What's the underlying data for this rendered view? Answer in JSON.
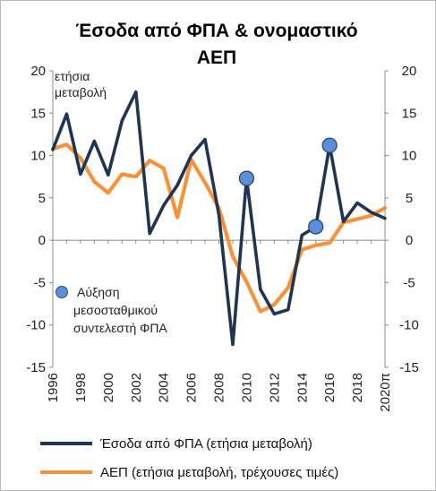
{
  "chart_data": {
    "type": "line",
    "title_line1": "Έσοδα από ΦΠΑ & ονομαστικό",
    "title_line2": "ΑΕΠ",
    "ylabel_line1": "ετήσια",
    "ylabel_line2": "μεταβολή",
    "ylim": [
      -15,
      20
    ],
    "yticks": [
      "20",
      "15",
      "10",
      "5",
      "0",
      "-5",
      "-10",
      "-15"
    ],
    "ytick_values": [
      20,
      15,
      10,
      5,
      0,
      -5,
      -10,
      -15
    ],
    "xlim": [
      1996,
      2020
    ],
    "xtick_labels": [
      "1996",
      "1998",
      "2000",
      "2002",
      "2004",
      "2006",
      "2008",
      "2010",
      "2012",
      "2014",
      "2016",
      "2018",
      "2020π"
    ],
    "xtick_values": [
      1996,
      1998,
      2000,
      2002,
      2004,
      2006,
      2008,
      2010,
      2012,
      2014,
      2016,
      2018,
      2020
    ],
    "series": [
      {
        "name": "Έσοδα από ΦΠΑ (ετήσια μεταβολή)",
        "color": "#1f3552",
        "x": [
          1996,
          1997,
          1998,
          1999,
          2000,
          2001,
          2002,
          2003,
          2004,
          2005,
          2006,
          2007,
          2008,
          2009,
          2010,
          2011,
          2012,
          2013,
          2014,
          2015,
          2016,
          2017,
          2018,
          2019,
          2020
        ],
        "values": [
          10.7,
          14.9,
          7.8,
          11.7,
          7.7,
          14.1,
          17.5,
          0.8,
          4.1,
          6.5,
          10.0,
          11.9,
          3.0,
          -12.3,
          7.3,
          -5.8,
          -8.7,
          -8.2,
          0.6,
          1.6,
          11.2,
          2.2,
          4.4,
          3.3,
          2.6
        ]
      },
      {
        "name": "ΑΕΠ (ετήσια μεταβολή, τρέχουσες τιμές)",
        "color": "#f7923a",
        "x": [
          1996,
          1997,
          1998,
          1999,
          2000,
          2001,
          2002,
          2003,
          2004,
          2005,
          2006,
          2007,
          2008,
          2009,
          2010,
          2011,
          2012,
          2013,
          2014,
          2015,
          2016,
          2017,
          2018,
          2019,
          2020
        ],
        "values": [
          10.8,
          11.3,
          9.7,
          6.9,
          5.6,
          7.8,
          7.5,
          9.4,
          8.5,
          2.7,
          9.5,
          6.8,
          3.8,
          -1.9,
          -4.9,
          -8.4,
          -7.6,
          -5.6,
          -1.1,
          -0.6,
          -0.3,
          2.1,
          2.5,
          2.9,
          3.8
        ]
      }
    ],
    "markers": {
      "label_line1": "Αύξηση",
      "label_line2": "μεσοσταθμικού",
      "label_line3": "συντελεστή ΦΠΑ",
      "color": "#5b8fd6",
      "points": [
        {
          "x": 2010,
          "y": 7.3
        },
        {
          "x": 2015,
          "y": 1.6
        },
        {
          "x": 2016,
          "y": 11.2
        }
      ]
    },
    "legend_position": "bottom"
  }
}
